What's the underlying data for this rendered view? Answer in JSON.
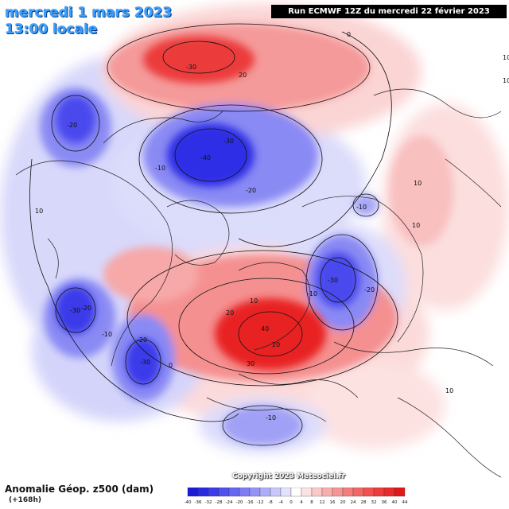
{
  "header": {
    "date_line": "mercredi 1 mars 2023",
    "time_line": "13:00 locale",
    "run_info": "Run ECMWF 12Z du mercredi 22 février 2023"
  },
  "footer": {
    "title": "Anomalie Géop. z500 (dam)",
    "lead_time": "(+168h)",
    "copyright": "Copyright 2023 Meteociel.fr"
  },
  "legend": {
    "ticks": [
      "-40",
      "-36",
      "-32",
      "-28",
      "-24",
      "-20",
      "-16",
      "-12",
      "-8",
      "-4",
      "0",
      "4",
      "8",
      "12",
      "16",
      "20",
      "24",
      "28",
      "32",
      "36",
      "40",
      "44"
    ],
    "colors": [
      "#1a1ad8",
      "#2a2ae2",
      "#3c3ce8",
      "#5050ee",
      "#6666f2",
      "#7c7cf4",
      "#9494f6",
      "#aeaef8",
      "#c8c8fa",
      "#e2e2fc",
      "#ffffff",
      "#fde2e2",
      "#fbc8c8",
      "#f9aeae",
      "#f79494",
      "#f57c7c",
      "#f36666",
      "#f15050",
      "#ee3c3c",
      "#e82a2a",
      "#e01818"
    ]
  },
  "contour_labels": [
    {
      "text": "0",
      "lon_desc": "north-top"
    },
    {
      "text": "-30"
    },
    {
      "text": "20"
    },
    {
      "text": "-20"
    },
    {
      "text": "-40"
    },
    {
      "text": "-30"
    },
    {
      "text": "10"
    },
    {
      "text": "-20"
    },
    {
      "text": "-10"
    },
    {
      "text": "10"
    },
    {
      "text": "10"
    },
    {
      "text": "10"
    },
    {
      "text": "-10"
    },
    {
      "text": "-30"
    },
    {
      "text": "-20"
    },
    {
      "text": "-10"
    },
    {
      "text": "10"
    },
    {
      "text": "-30"
    },
    {
      "text": "-20"
    },
    {
      "text": "-10"
    },
    {
      "text": "-20"
    },
    {
      "text": "-30"
    },
    {
      "text": "0"
    },
    {
      "text": "20"
    },
    {
      "text": "40"
    },
    {
      "text": "30"
    },
    {
      "text": "20"
    },
    {
      "text": "10"
    },
    {
      "text": "-10"
    },
    {
      "text": "10"
    }
  ],
  "anomaly_colors": {
    "strong_positive": "#e81c1c",
    "positive": "#f57c7c",
    "weak_positive": "#fbd0d0",
    "strong_negative": "#2020e0",
    "negative": "#7c7cf4",
    "weak_negative": "#d0d0fa"
  }
}
